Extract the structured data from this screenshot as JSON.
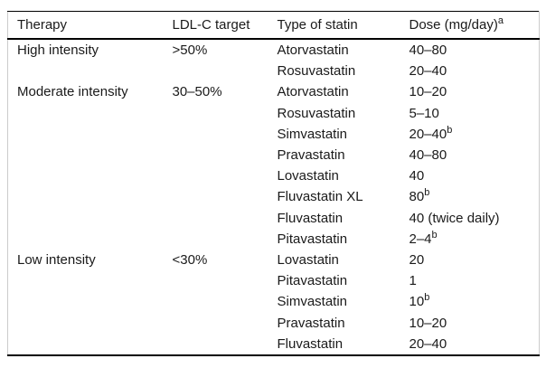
{
  "table": {
    "header": {
      "therapy": "Therapy",
      "target": "LDL-C target",
      "statin": "Type of statin",
      "dose": "Dose (mg/day)",
      "dose_sup": "a"
    },
    "rows": [
      {
        "therapy": "High intensity",
        "target": ">50%",
        "statin": "Atorvastatin",
        "dose": "40–80",
        "dose_sup": ""
      },
      {
        "therapy": "",
        "target": "",
        "statin": "Rosuvastatin",
        "dose": "20–40",
        "dose_sup": ""
      },
      {
        "therapy": "Moderate intensity",
        "target": "30–50%",
        "statin": "Atorvastatin",
        "dose": "10–20",
        "dose_sup": ""
      },
      {
        "therapy": "",
        "target": "",
        "statin": "Rosuvastatin",
        "dose": "5–10",
        "dose_sup": ""
      },
      {
        "therapy": "",
        "target": "",
        "statin": "Simvastatin",
        "dose": "20–40",
        "dose_sup": "b"
      },
      {
        "therapy": "",
        "target": "",
        "statin": "Pravastatin",
        "dose": "40–80",
        "dose_sup": ""
      },
      {
        "therapy": "",
        "target": "",
        "statin": "Lovastatin",
        "dose": "40",
        "dose_sup": ""
      },
      {
        "therapy": "",
        "target": "",
        "statin": "Fluvastatin XL",
        "dose": "80",
        "dose_sup": "b"
      },
      {
        "therapy": "",
        "target": "",
        "statin": "Fluvastatin",
        "dose": "40 (twice daily)",
        "dose_sup": ""
      },
      {
        "therapy": "",
        "target": "",
        "statin": "Pitavastatin",
        "dose": "2–4",
        "dose_sup": "b"
      },
      {
        "therapy": "Low intensity",
        "target": "<30%",
        "statin": "Lovastatin",
        "dose": "20",
        "dose_sup": ""
      },
      {
        "therapy": "",
        "target": "",
        "statin": "Pitavastatin",
        "dose": "1",
        "dose_sup": ""
      },
      {
        "therapy": "",
        "target": "",
        "statin": "Simvastatin",
        "dose": "10",
        "dose_sup": "b"
      },
      {
        "therapy": "",
        "target": "",
        "statin": "Pravastatin",
        "dose": "10–20",
        "dose_sup": ""
      },
      {
        "therapy": "",
        "target": "",
        "statin": "Fluvastatin",
        "dose": "20–40",
        "dose_sup": ""
      }
    ],
    "colors": {
      "border_strong": "#000000",
      "border_light": "#cccccc",
      "text": "#1a1a1a",
      "background": "#ffffff"
    }
  }
}
